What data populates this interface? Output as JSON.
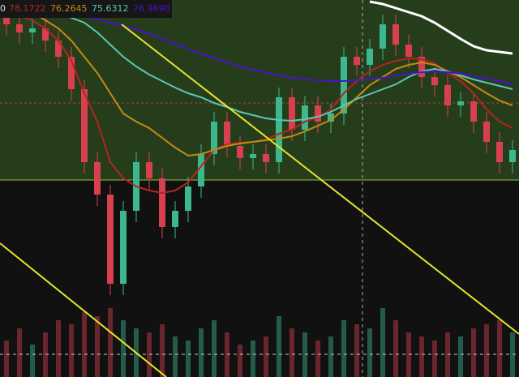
{
  "chart_data": {
    "type": "candlestick",
    "legend_lead": "0",
    "ylim": [
      65.5,
      84.5
    ],
    "volume_lim": [
      0,
      100
    ],
    "up_color": "#3db88e",
    "down_color": "#d8404f",
    "open": [
      83.5,
      83,
      82.5,
      82.75,
      82,
      81,
      79,
      74.5,
      72.5,
      67,
      71.5,
      74.5,
      73.5,
      70.5,
      71.5,
      73,
      75,
      77,
      75.5,
      74.75,
      75,
      74.5,
      78.5,
      76.5,
      78,
      77,
      77.5,
      81,
      80.5,
      81.5,
      83,
      81.75,
      81,
      79.75,
      79.25,
      78,
      78.25,
      77,
      75.75,
      74.5
    ],
    "high": [
      84.1,
      83.6,
      83.35,
      83.35,
      82.6,
      81.6,
      79.6,
      75.1,
      73.1,
      72.1,
      75.1,
      75.1,
      74.1,
      72.1,
      73.6,
      75.6,
      77.6,
      77.6,
      76.1,
      75.6,
      75.6,
      79.1,
      79.1,
      78.6,
      78.6,
      78.1,
      81.6,
      81.6,
      82.1,
      83.6,
      83.6,
      82.35,
      81.6,
      80.35,
      79.85,
      78.85,
      78.85,
      77.6,
      76.35,
      75.85
    ],
    "low": [
      82.3,
      81.8,
      81.8,
      81.3,
      80.3,
      78.3,
      73.8,
      71.8,
      66.3,
      66.3,
      70.8,
      72.8,
      69.8,
      69.8,
      70.8,
      72.3,
      74.3,
      74.8,
      74.05,
      74.05,
      73.8,
      73.8,
      75.8,
      75.8,
      76.3,
      76.3,
      76.8,
      79.8,
      79.8,
      80.8,
      81.05,
      80.3,
      79.05,
      78.55,
      77.3,
      77.3,
      76.3,
      75.05,
      73.8,
      73.8
    ],
    "close": [
      83,
      82.5,
      82.75,
      82,
      81,
      79,
      74.5,
      72.5,
      67,
      71.5,
      74.5,
      73.5,
      70.5,
      71.5,
      73,
      75,
      77,
      75.5,
      74.75,
      75,
      74.5,
      78.5,
      76.5,
      78,
      77,
      77.5,
      81,
      80.5,
      81.5,
      83,
      81.75,
      81,
      79.75,
      79.25,
      78,
      78.25,
      77,
      75.75,
      74.5,
      75.25
    ],
    "volume": [
      45,
      60,
      40,
      55,
      70,
      65,
      80,
      75,
      85,
      70,
      60,
      55,
      65,
      50,
      45,
      60,
      70,
      55,
      40,
      45,
      50,
      75,
      60,
      55,
      45,
      50,
      70,
      65,
      60,
      85,
      70,
      55,
      50,
      45,
      55,
      50,
      60,
      65,
      70,
      55
    ],
    "series": [
      {
        "name": "78.1722",
        "color": "#b3261e",
        "values": [
          84,
          83.5,
          83.25,
          82.75,
          82,
          80.75,
          78.75,
          77,
          74.5,
          73.5,
          73,
          72.75,
          72.6,
          72.75,
          73.25,
          74.25,
          75.25,
          75.6,
          75.7,
          75.75,
          75.9,
          76.25,
          76.5,
          77,
          77.25,
          77.75,
          78.75,
          79.5,
          80.1,
          80.5,
          80.75,
          80.9,
          80.85,
          80.6,
          80,
          79.5,
          78.75,
          77.75,
          77,
          76.6
        ]
      },
      {
        "name": "76.2645",
        "color": "#c58a12",
        "values": [
          84.5,
          84.1,
          83.75,
          83.25,
          82.75,
          82,
          81,
          80,
          78.75,
          77.5,
          77,
          76.6,
          76,
          75.4,
          74.9,
          75,
          75.25,
          75.5,
          75.65,
          75.75,
          75.85,
          75.95,
          76.1,
          76.4,
          76.75,
          77.1,
          77.75,
          78.5,
          79.25,
          79.75,
          80.25,
          80.5,
          80.65,
          80.5,
          80.1,
          79.75,
          79.25,
          78.75,
          78.3,
          78
        ]
      },
      {
        "name": "75.6312",
        "color": "#5cc6b4",
        "values": [
          84.5,
          84.5,
          84.25,
          84,
          83.75,
          83.4,
          83.1,
          82.5,
          81.75,
          81,
          80.4,
          79.9,
          79.5,
          79.1,
          78.75,
          78.5,
          78.15,
          77.9,
          77.6,
          77.4,
          77.2,
          77.1,
          77.05,
          77.15,
          77.3,
          77.6,
          78,
          78.4,
          78.7,
          79,
          79.3,
          79.75,
          80.1,
          80.25,
          80.1,
          79.85,
          79.6,
          79.4,
          79.2,
          79
        ]
      },
      {
        "name": "76.9698",
        "color": "#4a12c8",
        "values": [
          84.5,
          84.4,
          84.25,
          84.1,
          83.9,
          83.7,
          83.5,
          83.3,
          83.1,
          82.9,
          82.7,
          82.4,
          82.1,
          81.8,
          81.5,
          81.2,
          80.9,
          80.65,
          80.4,
          80.2,
          80,
          79.85,
          79.7,
          79.6,
          79.55,
          79.5,
          79.5,
          79.55,
          79.6,
          79.7,
          79.85,
          79.95,
          80.05,
          80.1,
          80.05,
          79.95,
          79.8,
          79.65,
          79.5,
          79.3
        ]
      },
      {
        "color": "#ffffff",
        "values": [
          null,
          null,
          null,
          null,
          null,
          null,
          null,
          null,
          null,
          null,
          null,
          null,
          null,
          null,
          null,
          null,
          null,
          null,
          null,
          null,
          null,
          null,
          null,
          null,
          null,
          null,
          null,
          null,
          84.4,
          84.25,
          84,
          83.75,
          83.5,
          83.1,
          82.6,
          82.1,
          81.65,
          81.4,
          81.3,
          81.2
        ]
      }
    ]
  }
}
